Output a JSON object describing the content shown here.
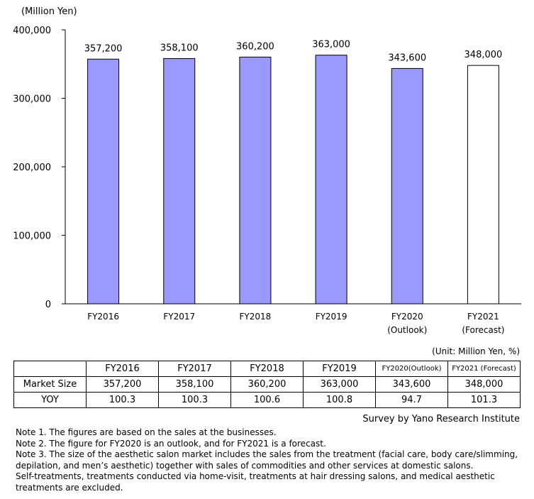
{
  "chart_data": {
    "type": "bar",
    "unit_label": "(Million  Yen)",
    "categories": [
      "FY2016",
      "FY2017",
      "FY2018",
      "FY2019",
      "FY2020",
      "FY2021"
    ],
    "category_sublabels": [
      "",
      "",
      "",
      "",
      "(Outlook)",
      "(Forecast)"
    ],
    "values": [
      357200,
      358100,
      360200,
      363000,
      343600,
      348000
    ],
    "data_labels": [
      "357,200",
      "358,100",
      "360,200",
      "363,000",
      "343,600",
      "348,000"
    ],
    "bar_fill": [
      "#9999ff",
      "#9999ff",
      "#9999ff",
      "#9999ff",
      "#9999ff",
      "#ffffff"
    ],
    "ylim": [
      0,
      400000
    ],
    "yticks": [
      0,
      100000,
      200000,
      300000,
      400000
    ],
    "ytick_labels": [
      "0",
      "100,000",
      "200,000",
      "300,000",
      "400,000"
    ],
    "grid": false,
    "legend": "none"
  },
  "table": {
    "unit_note": "(Unit: Million Yen, %)",
    "headers": [
      "",
      "FY2016",
      "FY2017",
      "FY2018",
      "FY2019",
      "FY2020(Outlook)",
      "FY2021 (Forecast)"
    ],
    "rows": [
      {
        "label": "Market Size",
        "values": [
          "357,200",
          "358,100",
          "360,200",
          "363,000",
          "343,600",
          "348,000"
        ]
      },
      {
        "label": "YOY",
        "values": [
          "100.3",
          "100.3",
          "100.6",
          "100.8",
          "94.7",
          "101.3"
        ]
      }
    ]
  },
  "source": "Survey by Yano Research Institute",
  "notes": [
    "Note 1.  The figures are based on the sales at the businesses.",
    "Note 2.  The figure for FY2020 is an outlook, and for FY2021 is a forecast.",
    "Note 3.  The size of the aesthetic salon market includes the sales from the treatment (facial care, body care/slimming,",
    "depilation, and men’s aesthetic) together with sales of commodities and other services at domestic salons.",
    "Self-treatments, treatments conducted via home-visit, treatments at hair dressing salons, and medical aesthetic",
    "treatments are excluded."
  ]
}
